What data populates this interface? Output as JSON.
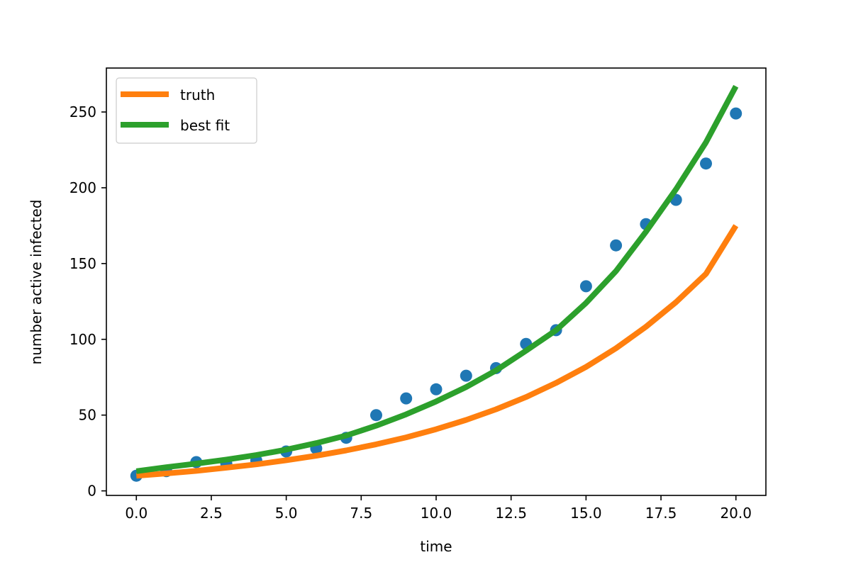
{
  "chart_data": {
    "type": "line",
    "title": "",
    "xlabel": "time",
    "ylabel": "number active infected",
    "xlim": [
      -1.0,
      21.0
    ],
    "ylim": [
      -3,
      279
    ],
    "xticks": [
      0.0,
      2.5,
      5.0,
      7.5,
      10.0,
      12.5,
      15.0,
      17.5,
      20.0
    ],
    "xtick_labels": [
      "0.0",
      "2.5",
      "5.0",
      "7.5",
      "10.0",
      "12.5",
      "15.0",
      "17.5",
      "20.0"
    ],
    "yticks": [
      0,
      50,
      100,
      150,
      200,
      250
    ],
    "ytick_labels": [
      "0",
      "50",
      "100",
      "150",
      "200",
      "250"
    ],
    "grid": false,
    "legend_position": "upper-left",
    "legend": [
      "truth",
      "best fit"
    ],
    "scatter": {
      "color": "#1f77b4",
      "x": [
        0,
        1,
        2,
        3,
        4,
        5,
        6,
        7,
        8,
        9,
        10,
        11,
        12,
        13,
        14,
        15,
        16,
        17,
        18,
        19,
        20
      ],
      "y": [
        10,
        13,
        19,
        18,
        20,
        26,
        28,
        35,
        50,
        61,
        67,
        76,
        81,
        97,
        106,
        135,
        162,
        176,
        192,
        216,
        249
      ]
    },
    "series": [
      {
        "name": "truth",
        "color": "#ff7f0e",
        "x": [
          0,
          1,
          2,
          3,
          4,
          5,
          6,
          7,
          8,
          9,
          10,
          11,
          12,
          13,
          14,
          15,
          16,
          17,
          18,
          19,
          20
        ],
        "y": [
          10.0,
          11.5,
          13.2,
          15.3,
          17.5,
          20.2,
          23.2,
          26.7,
          30.7,
          35.3,
          40.7,
          46.8,
          53.8,
          61.9,
          71.2,
          81.8,
          94.1,
          108.3,
          124.5,
          143.2,
          175.0
        ]
      },
      {
        "name": "best fit",
        "color": "#2ca02c",
        "x": [
          0,
          1,
          2,
          3,
          4,
          5,
          6,
          7,
          8,
          9,
          10,
          11,
          12,
          13,
          14,
          15,
          16,
          17,
          18,
          19,
          20
        ],
        "y": [
          13.0,
          15.6,
          18.0,
          20.6,
          23.6,
          27.2,
          31.5,
          36.5,
          43.0,
          50.5,
          59.0,
          68.5,
          79.5,
          92.5,
          106.0,
          124.0,
          145.0,
          171.0,
          199.0,
          230.0,
          267.0
        ]
      }
    ]
  }
}
